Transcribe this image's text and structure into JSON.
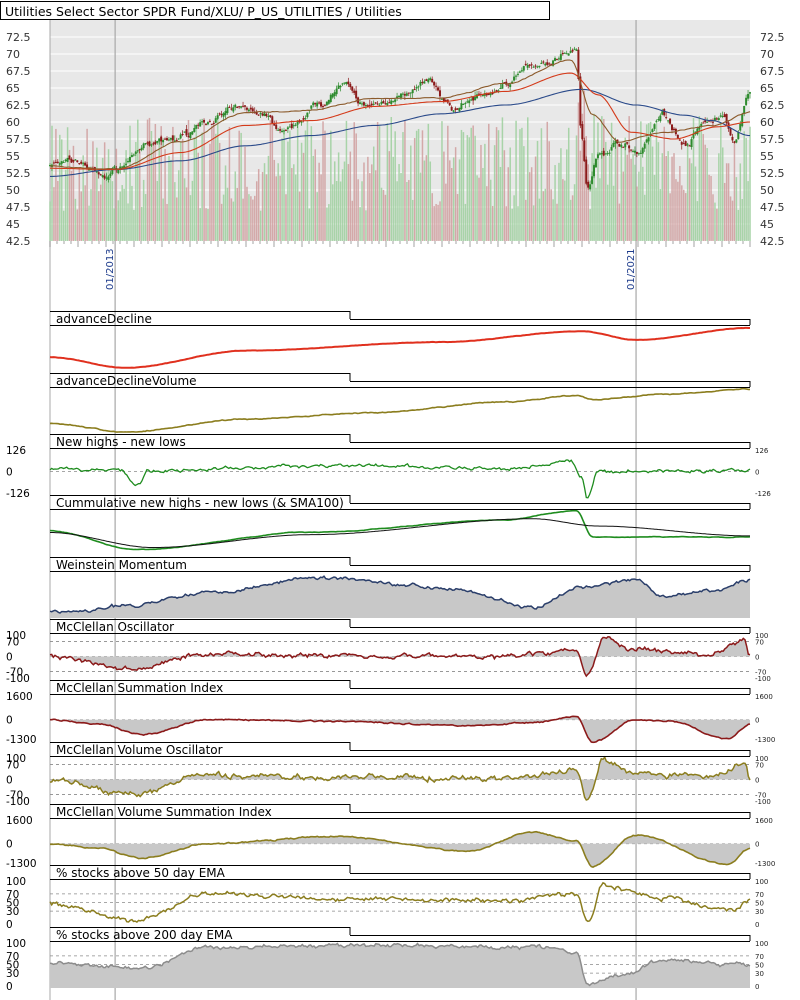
{
  "colors": {
    "background": "#ffffff",
    "plot_bg": "#e8e8e8",
    "grid": "#ffffff",
    "dashed": "#8a8a8a",
    "frame": "#000000",
    "candle_up": "#2e8b2e",
    "candle_down": "#8b1a1a",
    "vol_up": "#9ccf9c",
    "vol_down": "#cf9c9c",
    "sma_short": "#8b5a2b",
    "sma_mid": "#d43a1a",
    "sma_long": "#2a4a8a",
    "advdec": "#e0301e",
    "olive": "#8b7d1e",
    "green": "#1e8c1e",
    "navy": "#2a3e6a",
    "maroon": "#8b1a1a",
    "gray": "#8c8c8c",
    "fill": "#c8c8c8",
    "tick_text": "#1e3c8c"
  },
  "title": "Utilities Select Sector SPDR Fund/XLU/ P_US_UTILITIES / Utilities",
  "x_tick_labels": [
    "01/2013",
    "01/2021"
  ],
  "chart_data": [
    {
      "id": "price",
      "type": "candlestick",
      "title": "Utilities Select Sector SPDR Fund/XLU/ P_US_UTILITIES / Utilities",
      "ylim": [
        42.5,
        75
      ],
      "yticks": [
        "72.5",
        "70",
        "67.5",
        "65",
        "62.5",
        "60",
        "57.5",
        "55",
        "52.5",
        "50",
        "47.5",
        "45",
        "42.5"
      ],
      "x_range": [
        "2012-01",
        "2022-10"
      ],
      "x_tick_labels": [
        "01/2013",
        "01/2021"
      ],
      "close_anchors": [
        [
          "2012-01",
          53.8
        ],
        [
          "2012-06",
          54.2
        ],
        [
          "2012-11",
          52.0
        ],
        [
          "2013-02",
          53.5
        ],
        [
          "2013-06",
          56.3
        ],
        [
          "2013-12",
          57.5
        ],
        [
          "2014-06",
          60.2
        ],
        [
          "2014-12",
          62.0
        ],
        [
          "2015-04",
          61.3
        ],
        [
          "2015-08",
          58.5
        ],
        [
          "2016-03",
          62.8
        ],
        [
          "2016-07",
          65.5
        ],
        [
          "2016-11",
          62.3
        ],
        [
          "2017-06",
          63.8
        ],
        [
          "2017-11",
          66.0
        ],
        [
          "2018-03",
          62.0
        ],
        [
          "2018-09",
          64.0
        ],
        [
          "2019-06",
          68.0
        ],
        [
          "2020-02",
          70.8
        ],
        [
          "2020-03",
          58.0
        ],
        [
          "2020-04",
          50.0
        ],
        [
          "2020-06",
          55.0
        ],
        [
          "2020-10",
          57.0
        ],
        [
          "2021-01",
          55.5
        ],
        [
          "2021-06",
          61.0
        ],
        [
          "2021-10",
          56.5
        ],
        [
          "2022-02",
          60.0
        ],
        [
          "2022-05",
          61.0
        ],
        [
          "2022-07",
          57.0
        ],
        [
          "2022-10",
          64.0
        ]
      ],
      "sma_short_anchors": [
        [
          "2012-01",
          53.5
        ],
        [
          "2013-01",
          53.0
        ],
        [
          "2014-01",
          57.2
        ],
        [
          "2015-01",
          61.3
        ],
        [
          "2016-01",
          61.8
        ],
        [
          "2017-01",
          63.5
        ],
        [
          "2018-01",
          63.5
        ],
        [
          "2019-01",
          65.5
        ],
        [
          "2020-01",
          69.0
        ],
        [
          "2020-05",
          61.0
        ],
        [
          "2020-10",
          57.0
        ],
        [
          "2021-06",
          58.5
        ],
        [
          "2022-03",
          59.5
        ],
        [
          "2022-10",
          61.5
        ]
      ],
      "sma_mid_anchors": [
        [
          "2012-01",
          53.2
        ],
        [
          "2013-01",
          53.0
        ],
        [
          "2014-01",
          55.5
        ],
        [
          "2015-01",
          59.5
        ],
        [
          "2016-01",
          60.2
        ],
        [
          "2017-01",
          62.3
        ],
        [
          "2018-01",
          63.0
        ],
        [
          "2019-01",
          64.5
        ],
        [
          "2020-01",
          67.2
        ],
        [
          "2020-06",
          64.0
        ],
        [
          "2020-12",
          58.5
        ],
        [
          "2021-08",
          57.5
        ],
        [
          "2022-04",
          59.3
        ],
        [
          "2022-10",
          60.0
        ]
      ],
      "sma_long_anchors": [
        [
          "2012-01",
          52.0
        ],
        [
          "2013-01",
          53.0
        ],
        [
          "2014-01",
          54.3
        ],
        [
          "2015-01",
          56.5
        ],
        [
          "2016-01",
          58.0
        ],
        [
          "2017-01",
          59.5
        ],
        [
          "2018-01",
          61.2
        ],
        [
          "2019-01",
          62.5
        ],
        [
          "2020-03",
          64.8
        ],
        [
          "2021-01",
          62.5
        ],
        [
          "2021-10",
          61.0
        ],
        [
          "2022-03",
          60.2
        ],
        [
          "2022-10",
          58.0
        ]
      ]
    },
    {
      "id": "ad",
      "type": "line",
      "title": "advanceDecline",
      "anchors": [
        [
          "2012-01",
          0.3
        ],
        [
          "2013-03",
          0.05
        ],
        [
          "2015-01",
          0.45
        ],
        [
          "2018-01",
          0.65
        ],
        [
          "2020-03",
          0.9
        ],
        [
          "2021-01",
          0.7
        ],
        [
          "2022-10",
          0.98
        ]
      ]
    },
    {
      "id": "adv",
      "type": "line",
      "title": "advanceDeclineVolume",
      "anchors": [
        [
          "2012-01",
          0.2
        ],
        [
          "2013-03",
          0.0
        ],
        [
          "2015-01",
          0.3
        ],
        [
          "2017-01",
          0.45
        ],
        [
          "2019-01",
          0.7
        ],
        [
          "2020-02",
          0.85
        ],
        [
          "2020-05",
          0.75
        ],
        [
          "2021-06",
          0.88
        ],
        [
          "2022-10",
          1.0
        ]
      ]
    },
    {
      "id": "nhnl",
      "type": "line",
      "title": "New highs - new lows",
      "ylim": [
        -126,
        126
      ],
      "yticks_left": [
        "126",
        "0",
        "-126"
      ],
      "yticks_right": [
        "126",
        "0",
        "-126"
      ],
      "anchors": [
        [
          "2012-01",
          15
        ],
        [
          "2013-02",
          10
        ],
        [
          "2013-05",
          -80
        ],
        [
          "2013-07",
          5
        ],
        [
          "2016-06",
          35
        ],
        [
          "2019-01",
          15
        ],
        [
          "2020-01",
          60
        ],
        [
          "2020-03",
          -40
        ],
        [
          "2020-04",
          -160
        ],
        [
          "2020-06",
          0
        ],
        [
          "2022-10",
          5
        ]
      ]
    },
    {
      "id": "cumnh",
      "type": "line",
      "title": "Cummulative new highs - new lows (& SMA100)",
      "anchors": [
        [
          "2012-01",
          0.55
        ],
        [
          "2013-05",
          0.1
        ],
        [
          "2016-01",
          0.5
        ],
        [
          "2019-01",
          0.8
        ],
        [
          "2020-02",
          1.0
        ],
        [
          "2020-05",
          0.4
        ],
        [
          "2022-10",
          0.4
        ]
      ],
      "sma_anchors": [
        [
          "2012-01",
          0.5
        ],
        [
          "2013-08",
          0.15
        ],
        [
          "2016-01",
          0.45
        ],
        [
          "2019-06",
          0.82
        ],
        [
          "2020-06",
          0.65
        ],
        [
          "2022-10",
          0.42
        ]
      ]
    },
    {
      "id": "weinstein",
      "type": "area",
      "title": "Weinstein Momentum",
      "anchors": [
        [
          "2012-07",
          0.1
        ],
        [
          "2013-03",
          0.25
        ],
        [
          "2014-06",
          0.55
        ],
        [
          "2016-03",
          0.9
        ],
        [
          "2018-03",
          0.65
        ],
        [
          "2019-06",
          0.2
        ],
        [
          "2020-03",
          0.65
        ],
        [
          "2021-01",
          0.85
        ],
        [
          "2021-06",
          0.45
        ],
        [
          "2022-04",
          0.6
        ],
        [
          "2022-10",
          0.85
        ]
      ]
    },
    {
      "id": "mco",
      "type": "area",
      "title": "McClellan Oscillator",
      "ylim": [
        -100,
        100
      ],
      "yticks_left": [
        "100",
        "70",
        "0",
        "-70",
        "-100"
      ],
      "yticks_right": [
        "100",
        "70",
        "0",
        "-70",
        "-100"
      ],
      "anchors": [
        [
          "2012-01",
          0
        ],
        [
          "2013-04",
          -60
        ],
        [
          "2014-06",
          15
        ],
        [
          "2016-06",
          5
        ],
        [
          "2019-01",
          0
        ],
        [
          "2020-02",
          30
        ],
        [
          "2020-04",
          -90
        ],
        [
          "2020-07",
          85
        ],
        [
          "2021-01",
          30
        ],
        [
          "2022-03",
          10
        ],
        [
          "2022-09",
          80
        ],
        [
          "2022-10",
          5
        ]
      ]
    },
    {
      "id": "msi",
      "type": "area",
      "title": "McClellan Summation Index",
      "ylim": [
        -1300,
        1600
      ],
      "yticks_left": [
        "1600",
        "0",
        "-1300"
      ],
      "yticks_right": [
        "1600",
        "0",
        "-1300"
      ],
      "anchors": [
        [
          "2012-01",
          0
        ],
        [
          "2012-10",
          -300
        ],
        [
          "2013-06",
          -1000
        ],
        [
          "2014-06",
          0
        ],
        [
          "2016-06",
          -100
        ],
        [
          "2018-06",
          -400
        ],
        [
          "2019-06",
          -200
        ],
        [
          "2020-02",
          200
        ],
        [
          "2020-05",
          -1500
        ],
        [
          "2021-01",
          0
        ],
        [
          "2021-07",
          -100
        ],
        [
          "2022-06",
          -1300
        ],
        [
          "2022-10",
          -300
        ]
      ]
    },
    {
      "id": "mvo",
      "type": "area",
      "title": "McClellan Volume Oscillator",
      "ylim": [
        -100,
        100
      ],
      "yticks_left": [
        "100",
        "70",
        "0",
        "-70",
        "-100"
      ],
      "yticks_right": [
        "100",
        "70",
        "0",
        "-70",
        "-100"
      ],
      "anchors": [
        [
          "2012-01",
          0
        ],
        [
          "2013-04",
          -70
        ],
        [
          "2014-06",
          20
        ],
        [
          "2016-06",
          10
        ],
        [
          "2019-01",
          5
        ],
        [
          "2020-02",
          40
        ],
        [
          "2020-04",
          -95
        ],
        [
          "2020-07",
          90
        ],
        [
          "2021-01",
          25
        ],
        [
          "2022-03",
          15
        ],
        [
          "2022-09",
          70
        ],
        [
          "2022-10",
          5
        ]
      ]
    },
    {
      "id": "mvsi",
      "type": "area",
      "title": "McClellan Volume Summation Index",
      "ylim": [
        -1300,
        1600
      ],
      "yticks_left": [
        "1600",
        "0",
        "-1300"
      ],
      "yticks_right": [
        "1600",
        "0",
        "-1300"
      ],
      "anchors": [
        [
          "2012-01",
          0
        ],
        [
          "2012-10",
          -300
        ],
        [
          "2013-06",
          -1000
        ],
        [
          "2014-06",
          0
        ],
        [
          "2016-06",
          500
        ],
        [
          "2018-06",
          -500
        ],
        [
          "2019-06",
          800
        ],
        [
          "2020-02",
          200
        ],
        [
          "2020-05",
          -1500
        ],
        [
          "2021-01",
          600
        ],
        [
          "2022-06",
          -1400
        ],
        [
          "2022-10",
          -300
        ]
      ]
    },
    {
      "id": "ema50",
      "type": "line",
      "title": "% stocks above 50 day EMA",
      "ylim": [
        0,
        100
      ],
      "yticks_left": [
        "100",
        "70",
        "50",
        "30",
        "0"
      ],
      "yticks_right": [
        "100",
        "70",
        "50",
        "30",
        "0"
      ],
      "anchors": [
        [
          "2012-01",
          45
        ],
        [
          "2013-05",
          8
        ],
        [
          "2014-06",
          70
        ],
        [
          "2016-06",
          60
        ],
        [
          "2019-01",
          55
        ],
        [
          "2020-02",
          70
        ],
        [
          "2020-04",
          5
        ],
        [
          "2020-07",
          90
        ],
        [
          "2021-06",
          60
        ],
        [
          "2022-07",
          30
        ],
        [
          "2022-10",
          60
        ]
      ]
    },
    {
      "id": "ema200",
      "type": "line",
      "title": "% stocks above 200 day EMA",
      "ylim": [
        0,
        100
      ],
      "yticks_left": [
        "100",
        "70",
        "50",
        "30",
        "0"
      ],
      "yticks_right": [
        "100",
        "70",
        "50",
        "30",
        "0"
      ],
      "anchors": [
        [
          "2012-01",
          55
        ],
        [
          "2013-06",
          40
        ],
        [
          "2014-06",
          90
        ],
        [
          "2017-06",
          95
        ],
        [
          "2019-06",
          90
        ],
        [
          "2020-02",
          80
        ],
        [
          "2020-04",
          5
        ],
        [
          "2020-10",
          25
        ],
        [
          "2021-06",
          60
        ],
        [
          "2022-10",
          50
        ]
      ]
    }
  ]
}
